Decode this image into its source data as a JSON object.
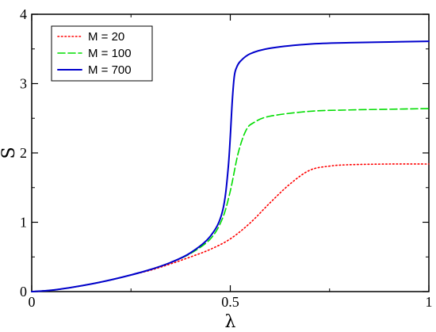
{
  "chart_data": {
    "type": "line",
    "xlabel": "λ",
    "ylabel": "S",
    "xlim": [
      0,
      1
    ],
    "ylim": [
      0,
      4
    ],
    "x_ticks": [
      0,
      0.5,
      1
    ],
    "x_tick_labels": [
      "0",
      "0.5",
      "1"
    ],
    "y_ticks": [
      0,
      1,
      2,
      3,
      4
    ],
    "y_tick_labels": [
      "0",
      "1",
      "2",
      "3",
      "4"
    ],
    "grid": false,
    "legend_position": "top-left",
    "series": [
      {
        "name": "M = 20",
        "color": "#ff0000",
        "style": "dotted",
        "x": [
          0,
          0.05,
          0.1,
          0.15,
          0.2,
          0.25,
          0.3,
          0.35,
          0.4,
          0.45,
          0.5,
          0.55,
          0.6,
          0.65,
          0.7,
          0.75,
          0.8,
          0.9,
          1.0
        ],
        "y": [
          0,
          0.02,
          0.06,
          0.11,
          0.17,
          0.24,
          0.31,
          0.4,
          0.5,
          0.61,
          0.76,
          0.99,
          1.28,
          1.55,
          1.75,
          1.81,
          1.83,
          1.84,
          1.84
        ]
      },
      {
        "name": "M = 100",
        "color": "#00dd00",
        "style": "dashed",
        "x": [
          0,
          0.05,
          0.1,
          0.15,
          0.2,
          0.25,
          0.3,
          0.35,
          0.4,
          0.45,
          0.48,
          0.5,
          0.52,
          0.54,
          0.56,
          0.6,
          0.7,
          0.8,
          0.9,
          1.0
        ],
        "y": [
          0,
          0.02,
          0.06,
          0.11,
          0.17,
          0.24,
          0.32,
          0.42,
          0.55,
          0.76,
          1.05,
          1.45,
          2.0,
          2.33,
          2.44,
          2.53,
          2.6,
          2.62,
          2.63,
          2.64
        ]
      },
      {
        "name": "M = 700",
        "color": "#0000cc",
        "style": "solid",
        "x": [
          0,
          0.05,
          0.1,
          0.15,
          0.2,
          0.25,
          0.3,
          0.35,
          0.4,
          0.45,
          0.48,
          0.495,
          0.505,
          0.51,
          0.515,
          0.525,
          0.55,
          0.6,
          0.7,
          0.8,
          0.9,
          1.0
        ],
        "y": [
          0,
          0.02,
          0.06,
          0.11,
          0.17,
          0.24,
          0.32,
          0.42,
          0.56,
          0.8,
          1.15,
          1.8,
          2.75,
          3.1,
          3.22,
          3.32,
          3.43,
          3.51,
          3.57,
          3.59,
          3.6,
          3.61
        ]
      }
    ]
  }
}
